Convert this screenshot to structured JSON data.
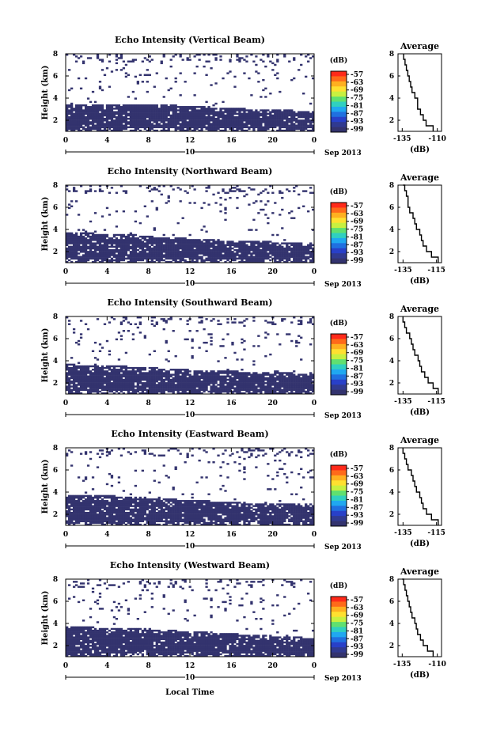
{
  "chart_data": {
    "type": "heatmap",
    "colorbar": {
      "unit": "(dB)",
      "ticks": [
        "-57",
        "-63",
        "-69",
        "-75",
        "-81",
        "-87",
        "-93",
        "-99"
      ],
      "colors": [
        "#ff2a1a",
        "#ff6a1a",
        "#ffb020",
        "#ffe030",
        "#c8f040",
        "#60e070",
        "#30d0c0",
        "#20a8f0",
        "#2070e0",
        "#2840c8",
        "#303a90",
        "#33336e"
      ]
    },
    "date_label": "10",
    "month_label": "Sep 2013",
    "xlabel_bottom": "Local Time",
    "x_ticks": [
      "0",
      "4",
      "8",
      "12",
      "16",
      "20",
      "0"
    ],
    "xlim": [
      0,
      24
    ],
    "y_ticks": [
      "2",
      "4",
      "6",
      "8"
    ],
    "ylim": [
      1,
      8
    ],
    "ylabel": "Height (km)",
    "profile": {
      "title": "Average",
      "xlabel": "(dB)",
      "x_ticks_a": [
        "-135",
        "-110"
      ],
      "x_ticks_b": [
        "-135",
        "-115"
      ]
    },
    "panels": [
      {
        "title": "Echo Intensity (Vertical Beam)",
        "layer_top_km": [
          3.5,
          3.5,
          3.4,
          3.5,
          3.5,
          3.4,
          3.3,
          3.2,
          3.2,
          3.0,
          3.0,
          2.9,
          2.9
        ],
        "profile_x_ticks": "a",
        "profile_km": [
          1,
          1.5,
          2,
          2.5,
          3,
          3.5,
          4,
          4.5,
          5,
          5.5,
          6,
          6.5,
          7,
          7.5,
          8
        ],
        "profile_db": [
          -113,
          -118,
          -120,
          -122,
          -124,
          -124,
          -126,
          -128,
          -129,
          -130,
          -131,
          -132,
          -133,
          -134,
          -134
        ]
      },
      {
        "title": "Echo Intensity (Northward Beam)",
        "layer_top_km": [
          3.7,
          3.7,
          3.6,
          3.6,
          3.4,
          3.3,
          3.2,
          3.1,
          3.0,
          3.0,
          2.9,
          2.8,
          2.7
        ],
        "profile_x_ticks": "b",
        "profile_km": [
          1,
          1.5,
          2,
          2.5,
          3,
          3.5,
          4,
          4.5,
          5,
          5.5,
          6,
          6.5,
          7,
          7.5,
          8
        ],
        "profile_db": [
          -114,
          -118,
          -121,
          -123,
          -124,
          -125,
          -127,
          -128,
          -129,
          -131,
          -132,
          -132,
          -133,
          -134,
          -135
        ]
      },
      {
        "title": "Echo Intensity (Southward Beam)",
        "layer_top_km": [
          3.7,
          3.6,
          3.6,
          3.5,
          3.4,
          3.3,
          3.2,
          3.2,
          3.1,
          3.0,
          3.0,
          2.9,
          2.9
        ],
        "profile_x_ticks": "b",
        "profile_km": [
          1,
          1.5,
          2,
          2.5,
          3,
          3.5,
          4,
          4.5,
          5,
          5.5,
          6,
          6.5,
          7,
          7.5,
          8
        ],
        "profile_db": [
          -114,
          -117,
          -120,
          -122,
          -124,
          -125,
          -126,
          -128,
          -129,
          -130,
          -131,
          -133,
          -134,
          -135,
          -135
        ]
      },
      {
        "title": "Echo Intensity (Eastward Beam)",
        "layer_top_km": [
          3.8,
          3.7,
          3.7,
          3.6,
          3.5,
          3.4,
          3.3,
          3.2,
          3.1,
          3.0,
          3.0,
          3.0,
          2.9
        ],
        "profile_x_ticks": "b",
        "profile_km": [
          1,
          1.5,
          2,
          2.5,
          3,
          3.5,
          4,
          4.5,
          5,
          5.5,
          6,
          6.5,
          7,
          7.5,
          8
        ],
        "profile_db": [
          -114,
          -118,
          -121,
          -123,
          -124,
          -125,
          -127,
          -128,
          -129,
          -130,
          -132,
          -133,
          -134,
          -135,
          -135
        ]
      },
      {
        "title": "Echo Intensity (Westward Beam)",
        "layer_top_km": [
          3.8,
          3.7,
          3.6,
          3.6,
          3.5,
          3.4,
          3.3,
          3.2,
          3.1,
          3.0,
          2.9,
          2.8,
          2.7
        ],
        "profile_x_ticks": "a",
        "profile_km": [
          1,
          1.5,
          2,
          2.5,
          3,
          3.5,
          4,
          4.5,
          5,
          5.5,
          6,
          6.5,
          7,
          7.5,
          8
        ],
        "profile_db": [
          -113,
          -117,
          -120,
          -122,
          -124,
          -125,
          -126,
          -128,
          -129,
          -130,
          -131,
          -132,
          -133,
          -134,
          -135
        ]
      }
    ]
  }
}
